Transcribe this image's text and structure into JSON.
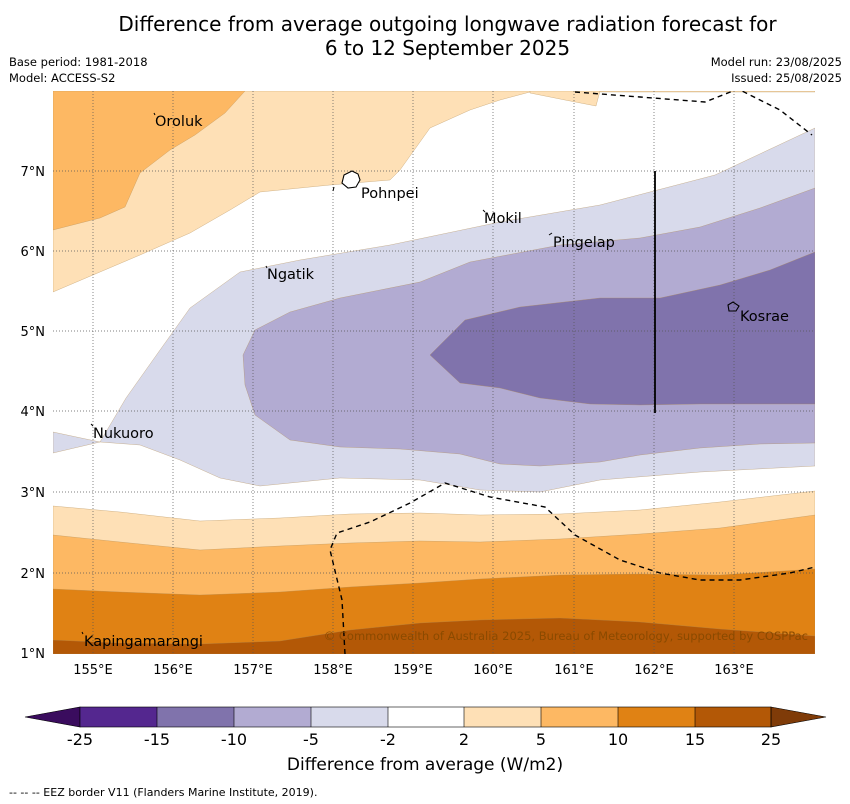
{
  "title": {
    "line1": "Difference from average outgoing longwave radiation forecast for",
    "line2": "6 to 12 September 2025"
  },
  "meta": {
    "base_period": "Base period: 1981-2018",
    "model": "Model: ACCESS-S2",
    "model_run": "Model run: 23/08/2025",
    "issued": "Issued: 25/08/2025"
  },
  "map": {
    "lon_ticks": [
      "155°E",
      "156°E",
      "157°E",
      "158°E",
      "159°E",
      "160°E",
      "161°E",
      "162°E",
      "163°E"
    ],
    "lat_ticks": [
      "1°N",
      "2°N",
      "3°N",
      "4°N",
      "5°N",
      "6°N",
      "7°N"
    ],
    "places": [
      {
        "name": "Oroluk"
      },
      {
        "name": "Pohnpei"
      },
      {
        "name": "Mokil"
      },
      {
        "name": "Pingelap"
      },
      {
        "name": "Ngatik"
      },
      {
        "name": "Kosrae"
      },
      {
        "name": "Nukuoro"
      },
      {
        "name": "Kapingamarangi"
      }
    ],
    "copyright": "© Commonwealth of Australia 2025, Bureau of Meteorology, supported by COSPPac",
    "colors": {
      "neg25": "#3a0c5e",
      "neg15": "#54278f",
      "neg10": "#8073ac",
      "neg5": "#b2abd2",
      "neg2": "#d8daeb",
      "neutral": "#ffffff",
      "pos2": "#fee0b6",
      "pos5": "#fdb863",
      "pos10": "#e08214",
      "pos15": "#b35806",
      "pos25": "#7f3b08"
    }
  },
  "colorbar": {
    "ticks": [
      "-25",
      "-15",
      "-10",
      "-5",
      "-2",
      "2",
      "5",
      "10",
      "15",
      "25"
    ],
    "label": "Difference from average (W/m2)"
  },
  "footer": "--  --  -- EEZ border V11 (Flanders Marine Institute, 2019)."
}
